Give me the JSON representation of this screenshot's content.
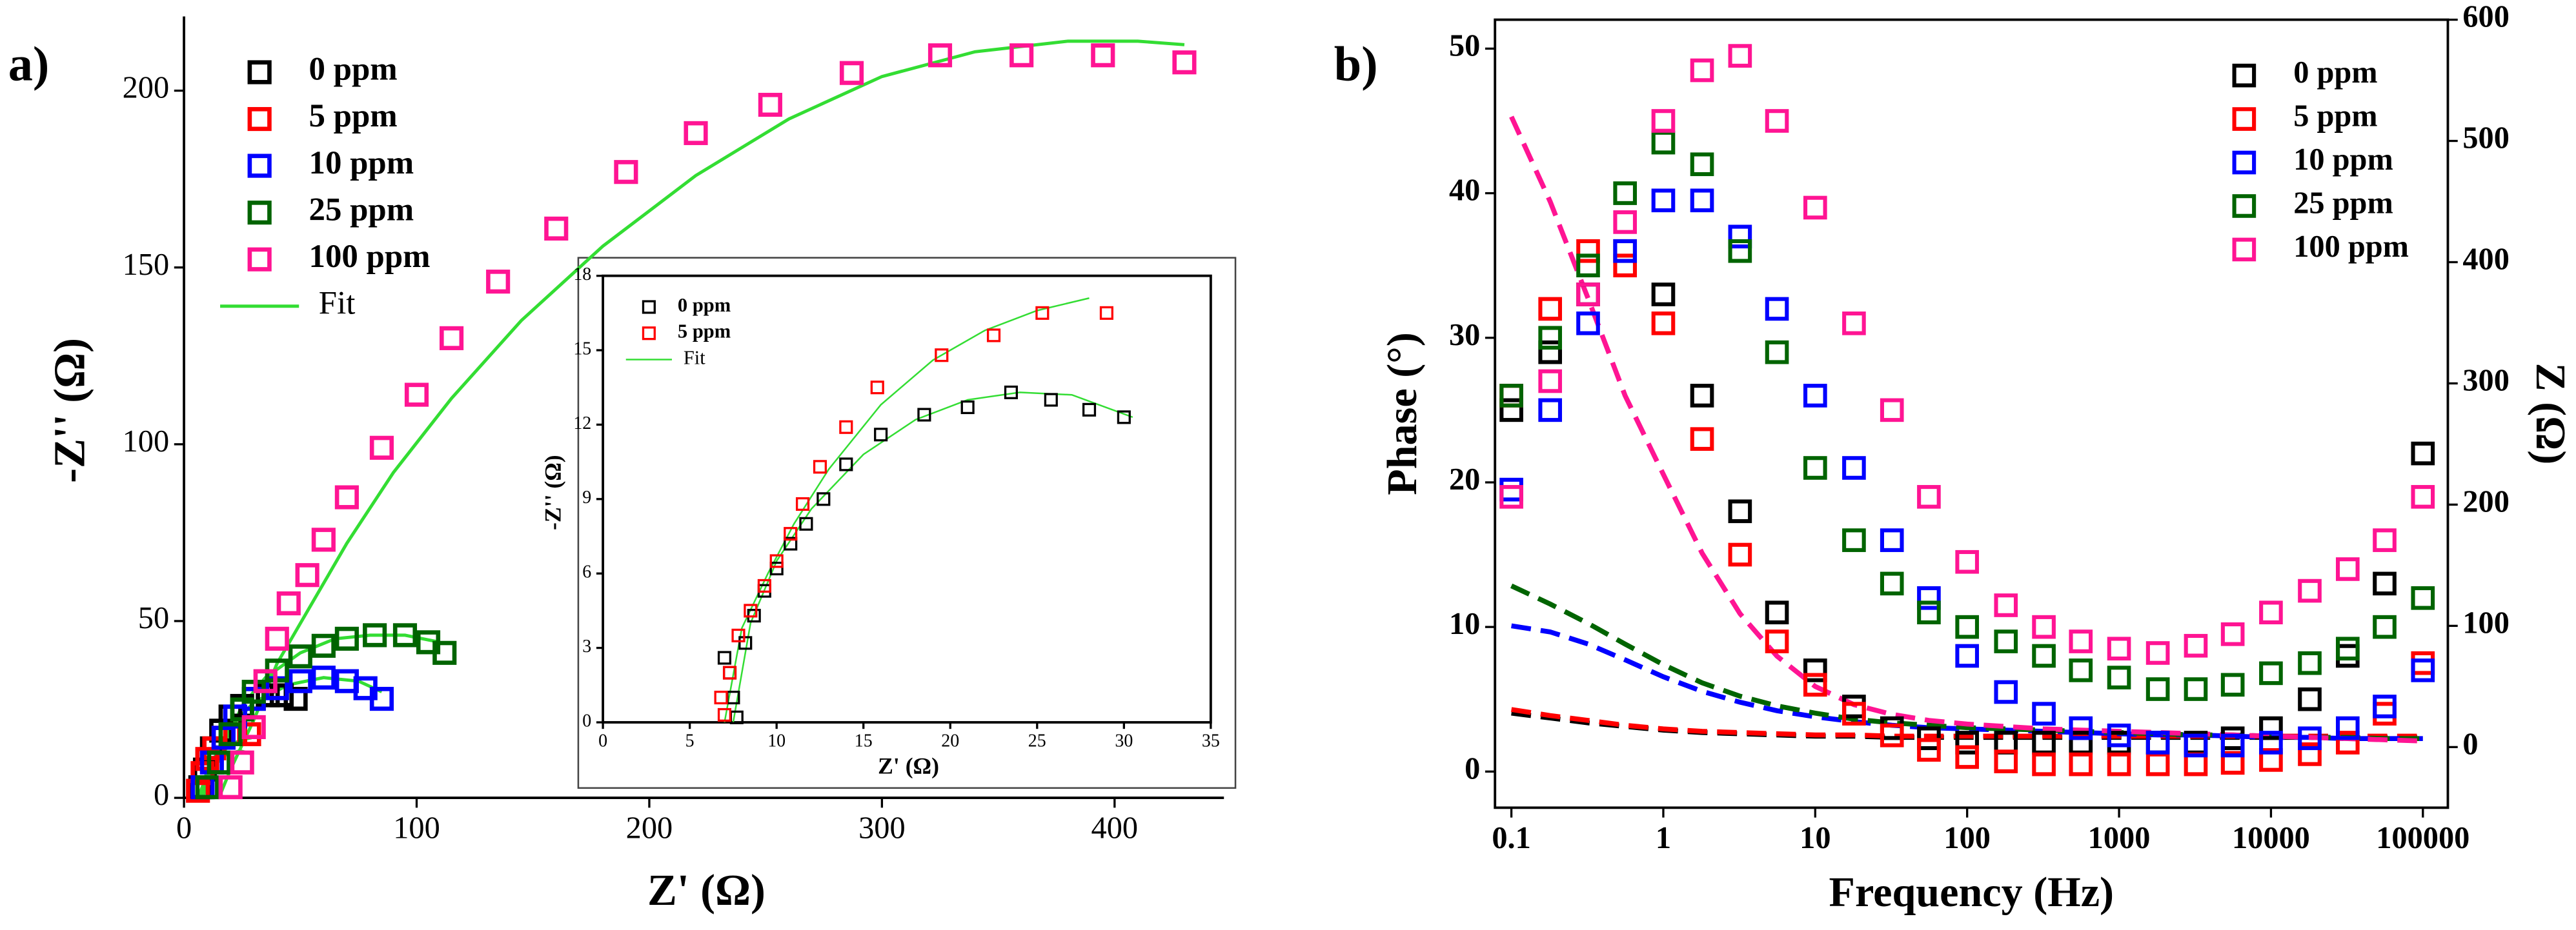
{
  "chart_data": [
    {
      "type": "scatter",
      "panel": "a)",
      "x_label": "Z' (Ω)",
      "y_label": "-Z'' (Ω)",
      "xlim": [
        0,
        447
      ],
      "ylim": [
        0,
        221
      ],
      "xticks": [
        0,
        100,
        200,
        300,
        400
      ],
      "yticks": [
        0,
        50,
        100,
        150,
        200
      ],
      "series": [
        {
          "name": "0 ppm",
          "color": "#000000",
          "x": [
            7,
            9,
            12,
            16,
            20,
            25,
            30,
            36,
            42,
            48
          ],
          "values": [
            3,
            8,
            14,
            19,
            23,
            26,
            28,
            29,
            29,
            28
          ]
        },
        {
          "name": "5 ppm",
          "color": "#ff0000",
          "x": [
            6,
            8,
            10,
            13,
            17,
            22,
            28
          ],
          "values": [
            2,
            7,
            11,
            14,
            17,
            18,
            18
          ]
        },
        {
          "name": "10 ppm",
          "color": "#0000ff",
          "x": [
            8,
            12,
            17,
            22,
            30,
            40,
            50,
            60,
            70,
            78,
            85
          ],
          "values": [
            3,
            10,
            17,
            23,
            28,
            31,
            33,
            34,
            33,
            31,
            28
          ]
        },
        {
          "name": "25 ppm",
          "color": "#006400",
          "x": [
            10,
            15,
            20,
            25,
            30,
            40,
            50,
            60,
            70,
            82,
            95,
            105,
            112
          ],
          "values": [
            3,
            10,
            18,
            25,
            30,
            36,
            40,
            43,
            45,
            46,
            46,
            44,
            41
          ]
        },
        {
          "name": "100 ppm",
          "color": "#ff1493",
          "x": [
            20,
            25,
            30,
            35,
            40,
            45,
            53,
            60,
            70,
            85,
            100,
            115,
            135,
            160,
            190,
            220,
            252,
            287,
            325,
            360,
            395,
            430
          ],
          "values": [
            3,
            10,
            20,
            33,
            45,
            55,
            63,
            73,
            85,
            99,
            114,
            130,
            146,
            161,
            177,
            188,
            196,
            205,
            210,
            210,
            210,
            208
          ]
        }
      ],
      "fit_name": "Fit",
      "fit_color": "#33dd33",
      "fits": [
        {
          "x": [
            7.5,
            12,
            18,
            24,
            30
          ],
          "values": [
            0,
            8.6,
            12.2,
            13.3,
            12.3
          ]
        },
        {
          "x": [
            7,
            10,
            15,
            20,
            25,
            29
          ],
          "values": [
            0,
            8,
            12,
            15,
            16.5,
            17
          ]
        },
        {
          "x": [
            6,
            12,
            20,
            30,
            45,
            60,
            75,
            85
          ],
          "values": [
            0,
            10,
            20,
            27,
            32,
            34,
            33,
            30
          ]
        },
        {
          "x": [
            8,
            15,
            25,
            35,
            50,
            65,
            80,
            95,
            110
          ],
          "values": [
            0,
            12,
            26,
            34,
            41,
            45,
            46,
            46,
            44
          ]
        },
        {
          "x": [
            15,
            20,
            30,
            40,
            55,
            70,
            90,
            115,
            145,
            180,
            220,
            260,
            300,
            340,
            380,
            410,
            430
          ],
          "values": [
            0,
            8,
            22,
            38,
            55,
            72,
            92,
            113,
            135,
            156,
            176,
            192,
            204,
            211,
            214,
            214,
            213
          ]
        }
      ]
    },
    {
      "type": "scatter",
      "x_label": "Z' (Ω)",
      "y_label": "-Z'' (Ω)",
      "xlim": [
        0,
        35
      ],
      "ylim": [
        0,
        18
      ],
      "xticks": [
        0,
        5,
        10,
        15,
        20,
        25,
        30,
        35
      ],
      "yticks": [
        0,
        3,
        6,
        9,
        12,
        15,
        18
      ],
      "series": [
        {
          "name": "0 ppm",
          "color": "#000000",
          "x": [
            7,
            7.3,
            7.5,
            7.7,
            8.2,
            8.7,
            9.3,
            10,
            10.8,
            11.7,
            12.7,
            14,
            16,
            18.5,
            21,
            23.5,
            25.8,
            28,
            30
          ],
          "values": [
            2.6,
            2,
            1,
            0.2,
            3.2,
            4.3,
            5.3,
            6.2,
            7.2,
            8,
            9,
            10.4,
            11.6,
            12.4,
            12.7,
            13.3,
            13,
            12.6,
            12.3
          ]
        },
        {
          "name": "5 ppm",
          "color": "#ff0000",
          "x": [
            6.8,
            7,
            7.3,
            7.8,
            8.5,
            9.3,
            10,
            10.8,
            11.5,
            12.5,
            14,
            15.8,
            19.5,
            22.5,
            25.3,
            29
          ],
          "values": [
            1,
            0.3,
            2,
            3.5,
            4.5,
            5.5,
            6.5,
            7.6,
            8.8,
            10.3,
            11.9,
            13.5,
            14.8,
            15.6,
            16.5,
            16.5
          ]
        }
      ],
      "fit_name": "Fit",
      "fit_color": "#33dd33",
      "fits": [
        {
          "x": [
            7.5,
            8.5,
            10,
            12,
            15,
            18,
            21,
            24,
            27,
            30.5
          ],
          "values": [
            0,
            4,
            6.5,
            8.6,
            10.8,
            12.2,
            13,
            13.3,
            13.2,
            12.3
          ]
        },
        {
          "x": [
            7,
            8,
            9.5,
            11,
            13,
            16,
            19,
            22,
            25,
            28
          ],
          "values": [
            0,
            3.8,
            6,
            8,
            10.2,
            12.8,
            14.6,
            15.8,
            16.6,
            17.1
          ]
        }
      ]
    },
    {
      "type": "scatter",
      "panel": "b)",
      "x_label": "Frequency (Hz)",
      "y_label": "Phase (°)",
      "y2_label": "Z (Ω)",
      "xscale": "log",
      "xlim": [
        0.078,
        146000
      ],
      "ylim": [
        -2.5,
        52
      ],
      "y2lim": [
        -50,
        600
      ],
      "xticks": [
        0.1,
        1,
        10,
        100,
        1000,
        10000,
        100000
      ],
      "yticks": [
        0,
        10,
        20,
        30,
        40,
        50
      ],
      "y2ticks": [
        0,
        100,
        200,
        300,
        400,
        500,
        600
      ],
      "x": [
        0.1,
        0.18,
        0.32,
        0.56,
        1,
        1.8,
        3.2,
        5.6,
        10,
        18,
        32,
        56,
        100,
        180,
        320,
        560,
        1000,
        1800,
        3200,
        5600,
        10000,
        18000,
        32000,
        56000,
        100000
      ],
      "series": [
        {
          "name": "0 ppm",
          "color": "#000000",
          "values": [
            25,
            29,
            33,
            36,
            33,
            26,
            18,
            11,
            7,
            4.5,
            3,
            2.3,
            2,
            2,
            2,
            2,
            2,
            2,
            2,
            2.3,
            3,
            5,
            8,
            13,
            22
          ],
          "z": [
            28,
            24,
            20,
            17,
            14,
            12,
            11,
            10,
            9,
            9,
            8,
            8,
            8,
            8,
            8,
            8,
            8,
            8,
            8,
            8,
            8,
            8,
            8,
            8,
            8
          ]
        },
        {
          "name": "5 ppm",
          "color": "#ff0000",
          "values": [
            26,
            32,
            36,
            35,
            31,
            23,
            15,
            9,
            6,
            4,
            2.5,
            1.5,
            1,
            0.7,
            0.5,
            0.5,
            0.5,
            0.5,
            0.5,
            0.6,
            0.8,
            1.2,
            2,
            4,
            7.5
          ],
          "z": [
            31,
            26,
            22,
            18,
            15,
            13,
            12,
            11,
            10,
            10,
            9,
            9,
            9,
            9,
            9,
            9,
            9,
            9,
            9,
            9,
            9,
            9,
            9,
            9,
            9
          ]
        },
        {
          "name": "10 ppm",
          "color": "#0000ff",
          "values": [
            19.5,
            25,
            31,
            36,
            39.5,
            39.5,
            37,
            32,
            26,
            21,
            16,
            12,
            8,
            5.5,
            4,
            3,
            2.5,
            2,
            1.8,
            1.8,
            2,
            2.3,
            3,
            4.5,
            7
          ],
          "z": [
            100,
            95,
            85,
            72,
            58,
            46,
            37,
            30,
            25,
            21,
            18,
            16,
            15,
            14,
            13,
            12,
            11,
            10,
            10,
            9,
            8,
            8,
            7,
            7,
            7
          ]
        },
        {
          "name": "25 ppm",
          "color": "#006400",
          "values": [
            26,
            30,
            35,
            40,
            43.5,
            42,
            36,
            29,
            21,
            16,
            13,
            11,
            10,
            9,
            8,
            7,
            6.5,
            5.7,
            5.7,
            6,
            6.8,
            7.5,
            8.5,
            10,
            12
          ],
          "z": [
            133,
            118,
            102,
            85,
            68,
            53,
            42,
            34,
            28,
            23,
            20,
            18,
            16,
            15,
            14,
            13,
            12,
            11,
            10,
            10,
            9,
            8,
            8,
            7,
            7
          ]
        },
        {
          "name": "100 ppm",
          "color": "#ff1493",
          "values": [
            19,
            27,
            33,
            38,
            45,
            48.5,
            49.5,
            45,
            39,
            31,
            25,
            19,
            14.5,
            11.5,
            10,
            9,
            8.5,
            8.2,
            8.7,
            9.5,
            11,
            12.5,
            14,
            16,
            19
          ],
          "z": [
            520,
            450,
            370,
            290,
            225,
            160,
            110,
            75,
            50,
            35,
            27,
            22,
            19,
            17,
            15,
            14,
            13,
            12,
            11,
            10,
            9,
            8,
            7,
            6,
            5
          ]
        }
      ]
    }
  ]
}
